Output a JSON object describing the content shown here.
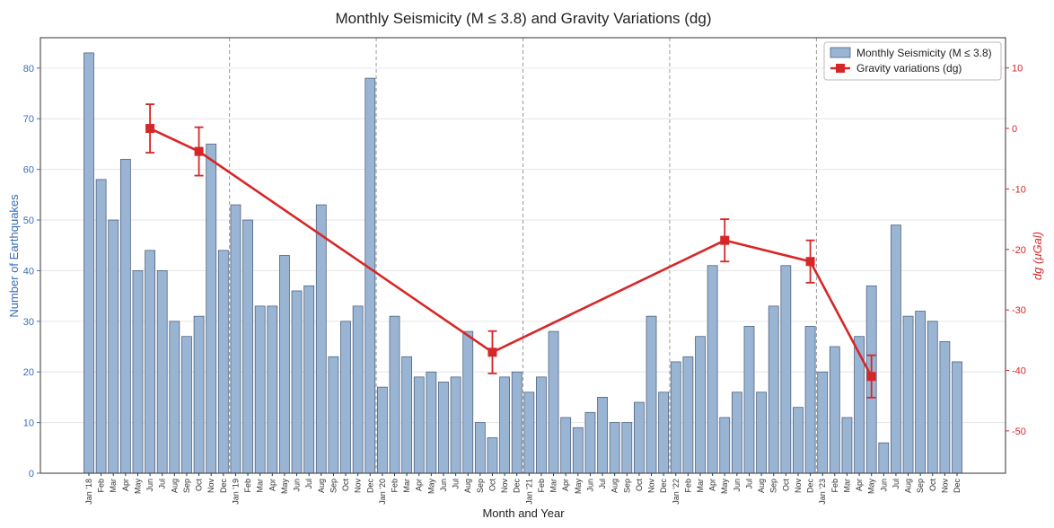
{
  "chart_data": {
    "type": "bar",
    "title": "Monthly Seismicity (M ≤ 3.8) and Gravity Variations (dg)",
    "xlabel": "Month and Year",
    "ylabel": "Number of Earthquakes",
    "y2label": "dg (μGal)",
    "ylim": [
      0,
      86
    ],
    "y2lim": [
      -57,
      15
    ],
    "yticks": [
      0,
      10,
      20,
      30,
      40,
      50,
      60,
      70,
      80
    ],
    "y2ticks": [
      10,
      0,
      -10,
      -20,
      -30,
      -40,
      -50
    ],
    "grid": true,
    "legend_position": "top-right",
    "colors": {
      "bars": "#9ab5d4",
      "bar_edge": "#4f6480",
      "gravity": "#d62728",
      "left_axis": "#3a6eb5",
      "right_axis": "#d62728"
    },
    "categories": [
      "Jan '18",
      "Feb",
      "Mar",
      "Apr",
      "May",
      "Jun",
      "Jul",
      "Aug",
      "Sep",
      "Oct",
      "Nov",
      "Dec",
      "Jan '19",
      "Feb",
      "Mar",
      "Apr",
      "May",
      "Jun",
      "Jul",
      "Aug",
      "Sep",
      "Oct",
      "Nov",
      "Dec",
      "Jan '20",
      "Feb",
      "Mar",
      "Apr",
      "May",
      "Jun",
      "Jul",
      "Aug",
      "Sep",
      "Oct",
      "Nov",
      "Dec",
      "Jan '21",
      "Feb",
      "Mar",
      "Apr",
      "May",
      "Jun",
      "Jul",
      "Aug",
      "Sep",
      "Oct",
      "Nov",
      "Dec",
      "Jan '22",
      "Feb",
      "Mar",
      "Apr",
      "May",
      "Jun",
      "Jul",
      "Aug",
      "Sep",
      "Oct",
      "Nov",
      "Dec",
      "Jan '23",
      "Feb",
      "Mar",
      "Apr",
      "May",
      "Jun",
      "Jul",
      "Aug",
      "Sep",
      "Oct",
      "Nov",
      "Dec"
    ],
    "year_boundaries": [
      "Jan '19",
      "Jan '20",
      "Jan '21",
      "Jan '22",
      "Jan '23"
    ],
    "series": [
      {
        "name": "Monthly Seismicity (M ≤ 3.8)",
        "type": "bar",
        "axis": "left",
        "values": [
          83,
          58,
          50,
          62,
          40,
          44,
          40,
          30,
          27,
          31,
          65,
          44,
          53,
          50,
          33,
          33,
          43,
          36,
          37,
          53,
          23,
          30,
          33,
          78,
          17,
          31,
          23,
          19,
          20,
          18,
          19,
          28,
          10,
          7,
          19,
          20,
          16,
          19,
          28,
          11,
          9,
          12,
          15,
          10,
          10,
          14,
          31,
          16,
          22,
          23,
          27,
          41,
          11,
          16,
          29,
          16,
          33,
          41,
          13,
          29,
          20,
          25,
          11,
          27,
          37,
          6,
          49,
          31,
          32,
          30,
          26,
          22
        ]
      },
      {
        "name": "Gravity variations (dg)",
        "type": "line",
        "axis": "right",
        "points": [
          {
            "x": "Jun '18",
            "y": 0,
            "err": 4
          },
          {
            "x": "Oct '18",
            "y": -3.8,
            "err": 4
          },
          {
            "x": "Oct '20",
            "y": -37,
            "err": 3.5
          },
          {
            "x": "May '22",
            "y": -18.5,
            "err": 3.5
          },
          {
            "x": "Dec '22",
            "y": -22,
            "err": 3.5
          },
          {
            "x": "May '23",
            "y": -41,
            "err": 3.5
          }
        ]
      }
    ]
  }
}
